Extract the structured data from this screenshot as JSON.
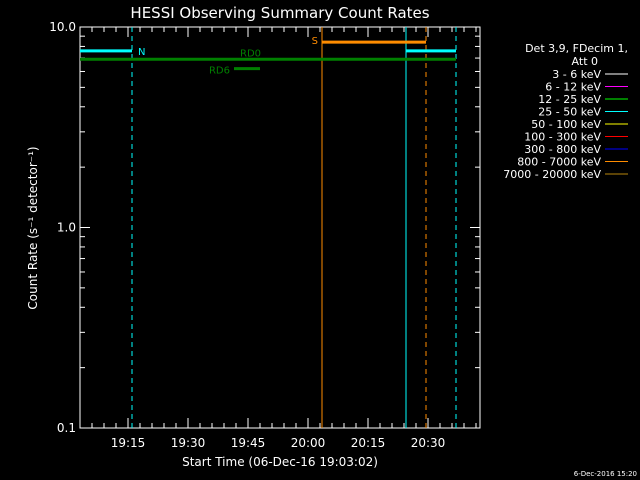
{
  "chart_data": {
    "type": "line",
    "title": "HESSI Observing Summary Count Rates",
    "xlabel": "Start Time (06-Dec-16 19:03:02)",
    "ylabel": "Count Rate (s⁻¹ detector⁻¹)",
    "yscale": "log",
    "ylim": [
      0.1,
      10.0
    ],
    "xlim_minutes": [
      0,
      100
    ],
    "yticks": [
      {
        "value": 10.0,
        "label": "10.0"
      },
      {
        "value": 1.0,
        "label": "1.0"
      },
      {
        "value": 0.1,
        "label": "0.1"
      }
    ],
    "xticks": [
      {
        "minute": 12,
        "label": "19:15"
      },
      {
        "minute": 27,
        "label": "19:30"
      },
      {
        "minute": 42,
        "label": "19:45"
      },
      {
        "minute": 57,
        "label": "20:00"
      },
      {
        "minute": 72,
        "label": "20:15"
      },
      {
        "minute": 87,
        "label": "20:30"
      }
    ],
    "legend": {
      "position": "right",
      "header": [
        "Det 3,9, FDecim 1,",
        "Att 0"
      ],
      "entries": [
        {
          "label": "3 - 6 keV",
          "color": "#ffffff"
        },
        {
          "label": "6 - 12 keV",
          "color": "#ff00ff"
        },
        {
          "label": "12 - 25 keV",
          "color": "#00ff00"
        },
        {
          "label": "25 - 50 keV",
          "color": "#00ffff"
        },
        {
          "label": "50 - 100 keV",
          "color": "#ffff00"
        },
        {
          "label": "100 - 300 keV",
          "color": "#ff0000"
        },
        {
          "label": "300 - 800 keV",
          "color": "#0000ff"
        },
        {
          "label": "800 - 7000 keV",
          "color": "#ff8c00"
        },
        {
          "label": "7000 - 20000 keV",
          "color": "#b8860b"
        }
      ]
    },
    "flag_bars": [
      {
        "label": "N",
        "color": "#00ffff",
        "y": 7.6,
        "segments": [
          [
            0,
            13
          ],
          [
            81.5,
            94
          ]
        ]
      },
      {
        "label": "S",
        "color": "#ff8c00",
        "y": 8.4,
        "segments": [
          [
            60.5,
            86.5
          ]
        ]
      },
      {
        "label": "RD0",
        "color": "#008000",
        "y": 6.9,
        "segments": [
          [
            0,
            94
          ]
        ]
      },
      {
        "label": "RD6",
        "color": "#008000",
        "y": 6.2,
        "segments": [
          [
            38.5,
            45
          ]
        ]
      }
    ],
    "vlines": [
      {
        "minute": 13,
        "color": "#00ffff",
        "style": "dashed"
      },
      {
        "minute": 60.5,
        "color": "#ff8c00",
        "style": "solid"
      },
      {
        "minute": 81.5,
        "color": "#00ffff",
        "style": "solid"
      },
      {
        "minute": 86.5,
        "color": "#ff8c00",
        "style": "dashed"
      },
      {
        "minute": 94,
        "color": "#00ffff",
        "style": "dashed"
      }
    ]
  },
  "footer": {
    "timestamp": "6-Dec-2016 15:20"
  }
}
